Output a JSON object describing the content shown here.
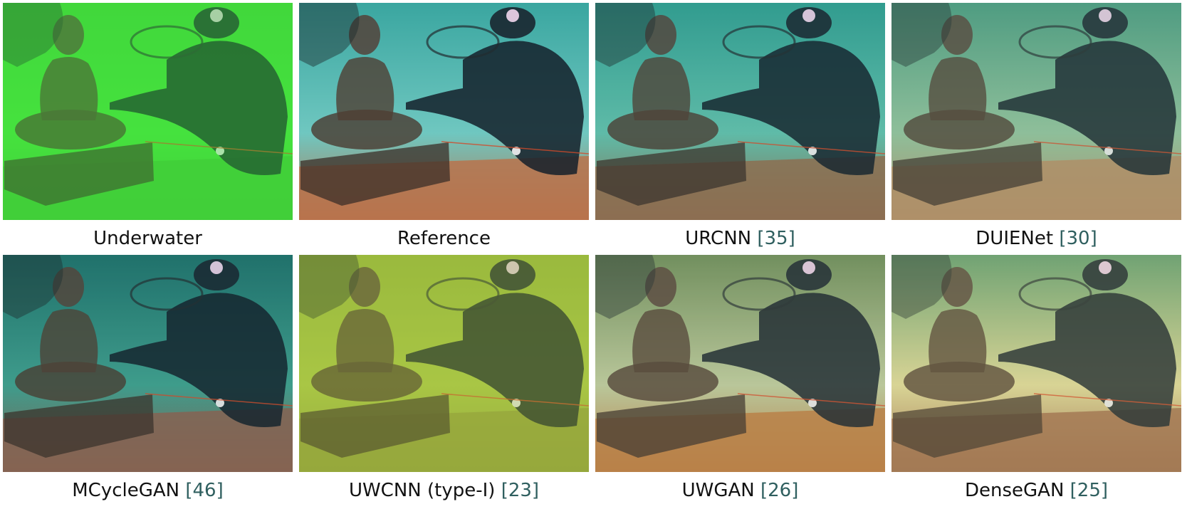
{
  "figure": {
    "panels": [
      {
        "caption": "Underwater",
        "cite": "",
        "tint": "#3fd23a",
        "water": "#46e23e",
        "sand": "#3fc436",
        "fog": 0.35
      },
      {
        "caption": "Reference",
        "cite": "",
        "tint": "#3aa6a0",
        "water": "#6fc7c0",
        "sand": "#b9734c",
        "fog": 0.0
      },
      {
        "caption": "URCNN",
        "cite": "[35]",
        "tint": "#2f9a8e",
        "water": "#5fbba8",
        "sand": "#8f6a4c",
        "fog": 0.05
      },
      {
        "caption": "DUIENet",
        "cite": "[30]",
        "tint": "#47987e",
        "water": "#8fbf9a",
        "sand": "#b48a62",
        "fog": 0.12
      },
      {
        "caption": "MCycleGAN",
        "cite": "[46]",
        "tint": "#1f6f6a",
        "water": "#3f9c8c",
        "sand": "#8a6050",
        "fog": 0.05
      },
      {
        "caption": "UWCNN (type-I)",
        "cite": "[23]",
        "tint": "#94b43a",
        "water": "#a9c645",
        "sand": "#8f9b3a",
        "fog": 0.3
      },
      {
        "caption": "UWGAN",
        "cite": "[26]",
        "tint": "#6a8a58",
        "water": "#b9c79a",
        "sand": "#b97a40",
        "fog": 0.1
      },
      {
        "caption": "DenseGAN",
        "cite": "[25]",
        "tint": "#5f9a6e",
        "water": "#d9d496",
        "sand": "#9b6a4a",
        "fog": 0.15
      }
    ]
  }
}
